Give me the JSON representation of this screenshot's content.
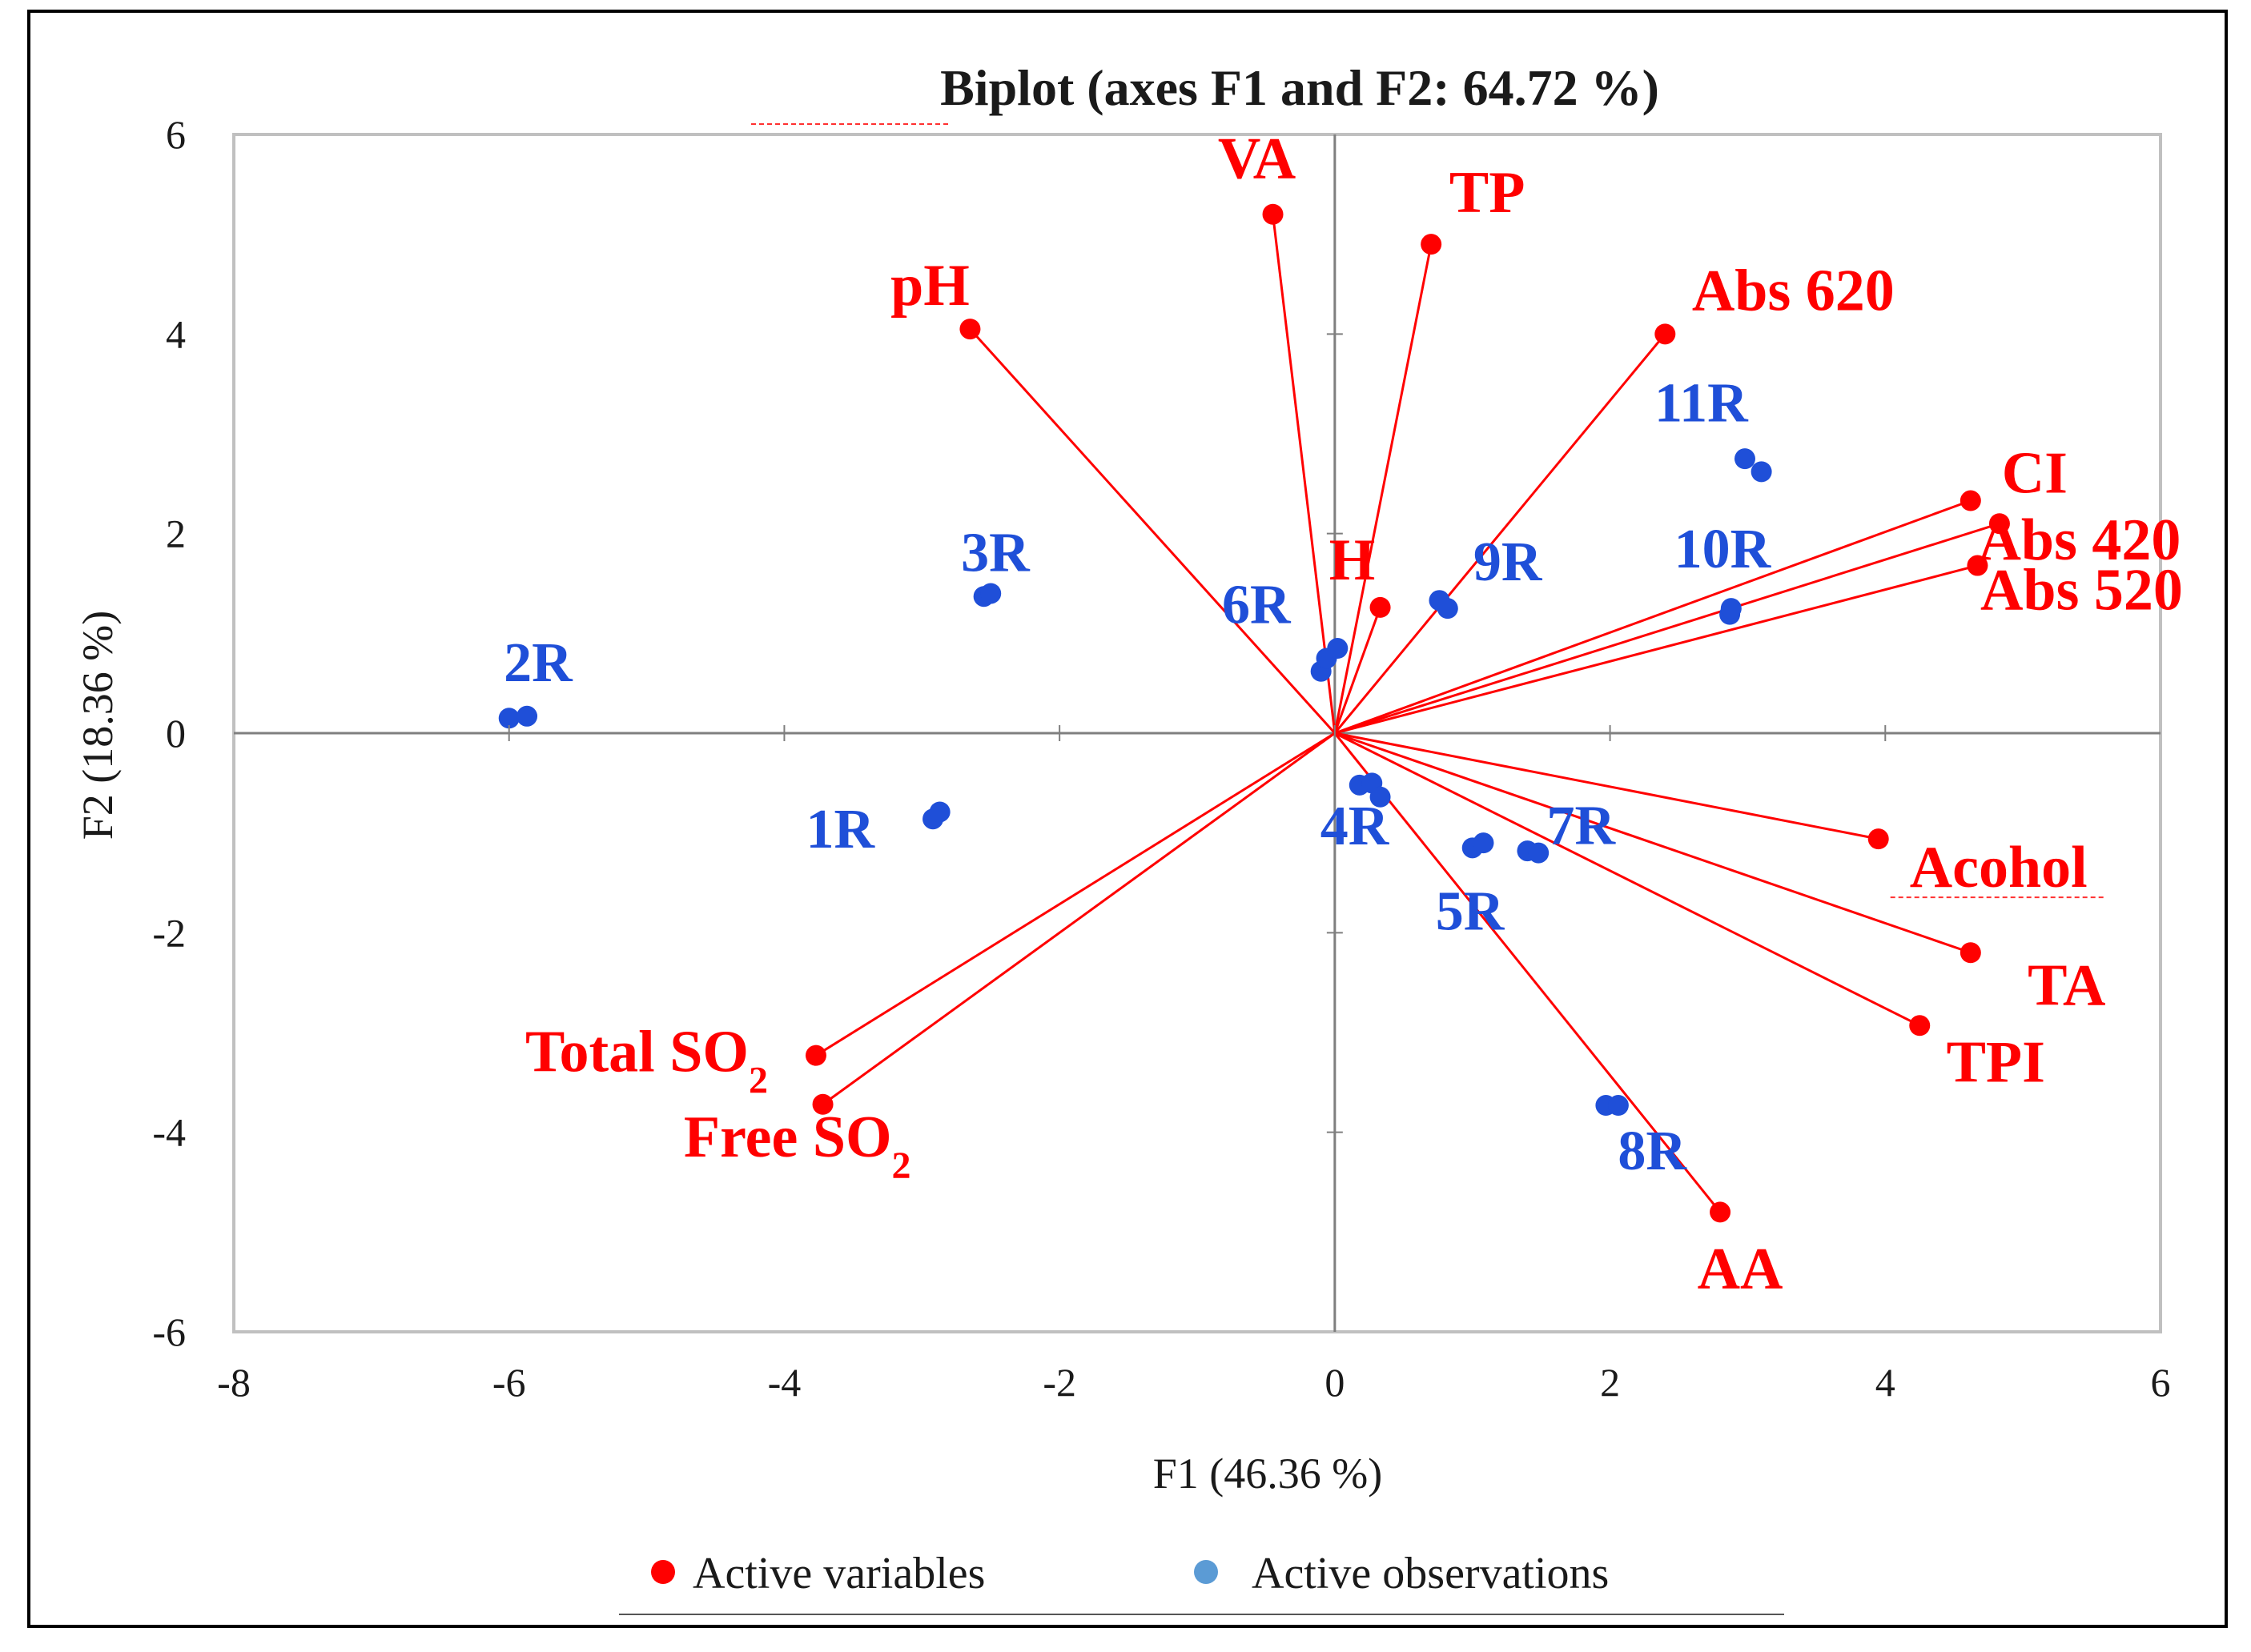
{
  "chart_data": {
    "type": "scatter",
    "title": "Biplot (axes F1 and F2: 64.72 %)",
    "xlabel": "F1 (46.36 %)",
    "ylabel": "F2 (18.36 %)",
    "xlim": [
      -8,
      6
    ],
    "ylim": [
      -6,
      6
    ],
    "xticks": [
      -8,
      -6,
      -4,
      -2,
      0,
      2,
      4,
      6
    ],
    "yticks": [
      -6,
      -4,
      -2,
      0,
      2,
      4,
      6
    ],
    "grid": false,
    "legend_position": "bottom",
    "colors": {
      "variables": "#ff0000",
      "observations": "#1f4fd8",
      "observations_legend": "#5b9bd5",
      "axes": "#c0c0c0",
      "text": "#1a1a1a"
    },
    "legend": [
      {
        "label": "Active variables",
        "color": "#ff0000"
      },
      {
        "label": "Active observations",
        "color": "#5b9bd5"
      }
    ],
    "series": [
      {
        "name": "Active variables",
        "vectors": [
          {
            "label": "VA",
            "x": -0.45,
            "y": 5.2
          },
          {
            "label": "TP",
            "x": 0.7,
            "y": 4.9
          },
          {
            "label": "pH",
            "x": -2.65,
            "y": 4.05
          },
          {
            "label": "Abs 620",
            "x": 2.4,
            "y": 4.0
          },
          {
            "label": "CI",
            "x": 4.62,
            "y": 2.33
          },
          {
            "label": "Abs 420",
            "x": 4.83,
            "y": 2.1
          },
          {
            "label": "Abs 520",
            "x": 4.67,
            "y": 1.68
          },
          {
            "label": "H",
            "x": 0.33,
            "y": 1.26
          },
          {
            "label": "Acohol",
            "x": 3.95,
            "y": -1.06
          },
          {
            "label": "TA",
            "x": 4.62,
            "y": -2.2
          },
          {
            "label": "TPI",
            "x": 4.25,
            "y": -2.93
          },
          {
            "label": "AA",
            "x": 2.8,
            "y": -4.8
          },
          {
            "label": "Total SO2",
            "x": -3.77,
            "y": -3.23
          },
          {
            "label": "Free SO2",
            "x": -3.72,
            "y": -3.72
          }
        ]
      },
      {
        "name": "Active observations",
        "points": [
          {
            "label": "1R",
            "x": [
              -2.92,
              -2.87
            ],
            "y": [
              -0.86,
              -0.79
            ]
          },
          {
            "label": "2R",
            "x": [
              -6.0,
              -5.87
            ],
            "y": [
              0.15,
              0.17
            ]
          },
          {
            "label": "3R",
            "x": [
              -2.55,
              -2.5
            ],
            "y": [
              1.37,
              1.4
            ]
          },
          {
            "label": "4R",
            "x": [
              0.18,
              0.27,
              0.33
            ],
            "y": [
              -0.52,
              -0.5,
              -0.64
            ]
          },
          {
            "label": "5R",
            "x": [
              1.0,
              1.08
            ],
            "y": [
              -1.15,
              -1.1
            ]
          },
          {
            "label": "6R",
            "x": [
              -0.1,
              -0.06,
              0.02
            ],
            "y": [
              0.62,
              0.75,
              0.85
            ]
          },
          {
            "label": "7R",
            "x": [
              1.4,
              1.48
            ],
            "y": [
              -1.18,
              -1.2
            ]
          },
          {
            "label": "8R",
            "x": [
              1.97,
              2.06
            ],
            "y": [
              -3.73,
              -3.73
            ]
          },
          {
            "label": "9R",
            "x": [
              0.76,
              0.82
            ],
            "y": [
              1.33,
              1.25
            ]
          },
          {
            "label": "10R",
            "x": [
              2.87,
              2.88
            ],
            "y": [
              1.19,
              1.25
            ]
          },
          {
            "label": "11R",
            "x": [
              2.98,
              3.1
            ],
            "y": [
              2.75,
              2.62
            ]
          }
        ]
      }
    ]
  }
}
